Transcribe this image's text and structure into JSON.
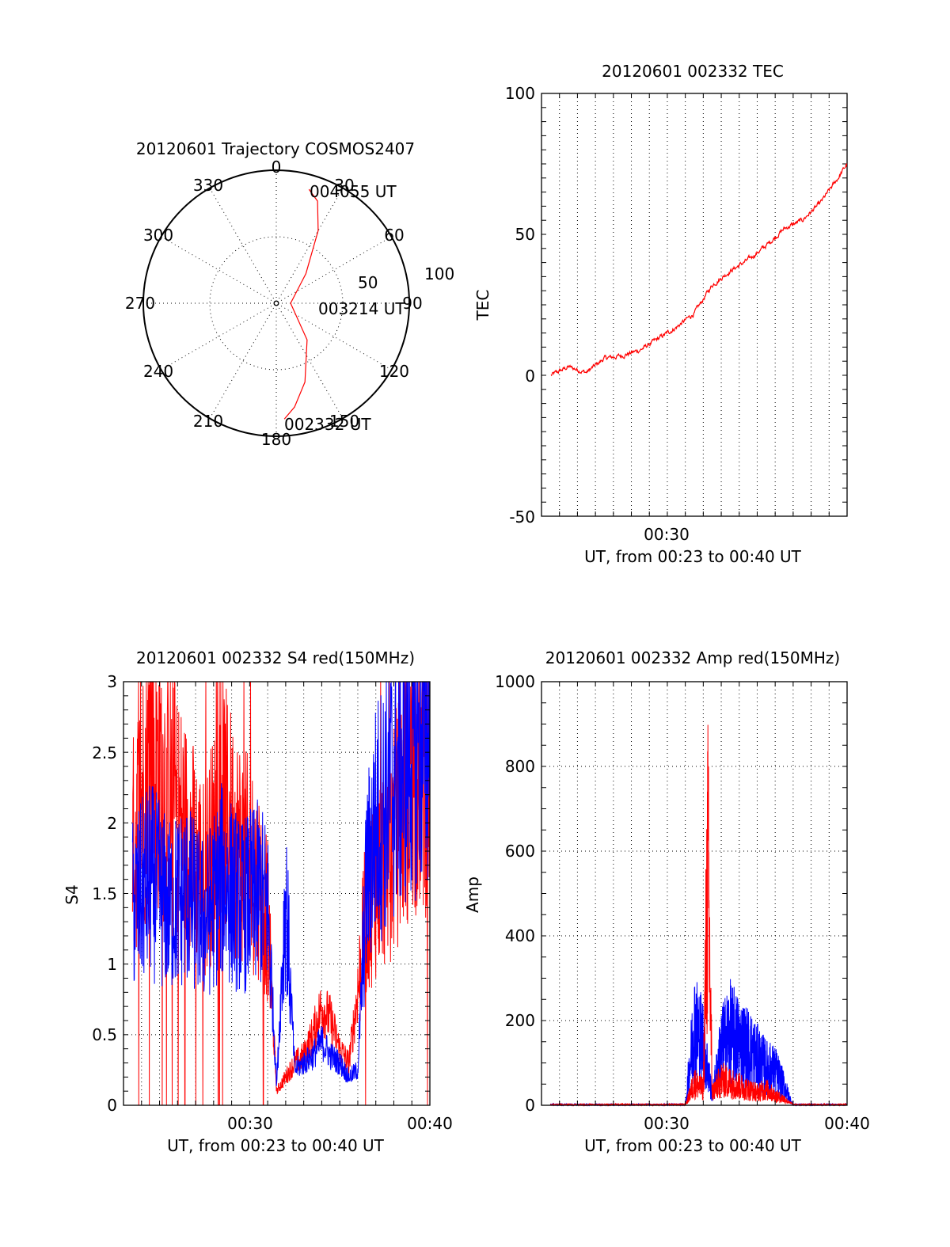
{
  "polar": {
    "title": "20120601 Trajectory COSMOS2407",
    "azimuth_labels": [
      "0",
      "30",
      "60",
      "90",
      "120",
      "150",
      "180",
      "210",
      "240",
      "270",
      "300",
      "330"
    ],
    "radial_labels": [
      "50",
      "100"
    ],
    "annotations": {
      "end": "004055 UT",
      "mid": "003214 UT",
      "start": "002332 UT"
    }
  },
  "tec": {
    "title": "20120601 002332 TEC",
    "ylabel": "TEC",
    "xlabel": "UT, from 00:23 to 00:40 UT",
    "yticks": [
      "100",
      "50",
      "0",
      "-50"
    ],
    "xticks": [
      "00:30"
    ]
  },
  "s4": {
    "title": "20120601 002332 S4 red(150MHz)",
    "ylabel": "S4",
    "xlabel": "UT, from 00:23 to 00:40 UT",
    "yticks": [
      "3",
      "2.5",
      "2",
      "1.5",
      "1",
      "0.5",
      "0"
    ],
    "xticks": [
      "00:30",
      "00:40"
    ]
  },
  "amp": {
    "title": "20120601 002332 Amp red(150MHz)",
    "ylabel": "Amp",
    "xlabel": "UT, from 00:23 to 00:40 UT",
    "yticks": [
      "1000",
      "800",
      "600",
      "400",
      "200",
      "0"
    ],
    "xticks": [
      "00:30",
      "00:40"
    ]
  },
  "colors": {
    "red": "#ff0000",
    "blue": "#0000ff"
  },
  "chart_data": [
    {
      "type": "scatter",
      "title": "20120601 Trajectory COSMOS2407",
      "projection": "polar",
      "series": [
        {
          "azimuth_deg": [
            176,
            170,
            160,
            140,
            90,
            45,
            30,
            22,
            16
          ],
          "radius": [
            97,
            88,
            70,
            40,
            12,
            35,
            70,
            92,
            99
          ]
        }
      ],
      "rlim": [
        0,
        100
      ]
    },
    {
      "type": "line",
      "title": "20120601 002332 TEC",
      "xlabel": "UT, from 00:23 to 00:40 UT",
      "ylabel": "TEC",
      "ylim": [
        -50,
        100
      ],
      "series": [
        {
          "x": [
            "00:23:32",
            "00:24:30",
            "00:25:30",
            "00:26:30",
            "00:27:30",
            "00:28:30",
            "00:29:30",
            "00:30:30",
            "00:31:30",
            "00:32:30",
            "00:33:30",
            "00:34:30",
            "00:35:30",
            "00:36:30",
            "00:37:30",
            "00:38:30",
            "00:39:30",
            "00:40:00"
          ],
          "values": [
            0,
            3,
            1,
            6,
            7,
            9,
            13,
            17,
            22,
            32,
            37,
            41,
            46,
            52,
            55,
            61,
            70,
            75
          ]
        }
      ]
    },
    {
      "type": "line",
      "title": "20120601 002332 S4 red(150MHz)",
      "xlabel": "UT, from 00:23 to 00:40 UT",
      "ylabel": "S4",
      "ylim": [
        0,
        3
      ],
      "series": [
        {
          "color": "red",
          "x": [
            "00:23:30",
            "00:24:30",
            "00:25:30",
            "00:26:30",
            "00:27:30",
            "00:28:30",
            "00:29:30",
            "00:30:30",
            "00:31:00",
            "00:31:30",
            "00:32:00",
            "00:32:30",
            "00:33:00",
            "00:33:30",
            "00:34:00",
            "00:34:30",
            "00:35:00",
            "00:35:30",
            "00:36:00",
            "00:36:30",
            "00:37:00",
            "00:38:00",
            "00:39:00",
            "00:40:00"
          ],
          "values": [
            1.8,
            2.5,
            2.2,
            1.9,
            1.6,
            2.1,
            1.8,
            1.6,
            1.3,
            0.1,
            0.2,
            0.3,
            0.35,
            0.5,
            0.7,
            0.6,
            0.4,
            0.3,
            0.8,
            1.4,
            1.6,
            1.9,
            2.4,
            2.4
          ]
        },
        {
          "color": "blue",
          "x": [
            "00:23:30",
            "00:24:30",
            "00:25:30",
            "00:26:30",
            "00:27:30",
            "00:28:30",
            "00:29:30",
            "00:30:30",
            "00:31:00",
            "00:31:30",
            "00:32:00",
            "00:32:30",
            "00:33:00",
            "00:33:30",
            "00:34:00",
            "00:34:30",
            "00:35:00",
            "00:35:30",
            "00:36:00",
            "00:36:30",
            "00:37:00",
            "00:38:00",
            "00:39:00",
            "00:40:00"
          ],
          "values": [
            1.4,
            1.6,
            1.4,
            1.5,
            1.3,
            1.6,
            1.4,
            1.5,
            1.4,
            0.15,
            1.5,
            0.25,
            0.3,
            0.35,
            0.45,
            0.35,
            0.3,
            0.2,
            0.25,
            1.6,
            2.0,
            2.3,
            2.6,
            2.7
          ]
        }
      ]
    },
    {
      "type": "line",
      "title": "20120601 002332 Amp red(150MHz)",
      "xlabel": "UT, from 00:23 to 00:40 UT",
      "ylabel": "Amp",
      "ylim": [
        0,
        1000
      ],
      "series": [
        {
          "color": "red",
          "x": [
            "00:23:30",
            "00:30:00",
            "00:31:00",
            "00:31:30",
            "00:32:00",
            "00:32:15",
            "00:32:30",
            "00:33:00",
            "00:33:30",
            "00:34:00",
            "00:34:30",
            "00:35:00",
            "00:35:30",
            "00:36:00",
            "00:36:30",
            "00:37:00",
            "00:40:00"
          ],
          "values": [
            0,
            0,
            0,
            70,
            50,
            750,
            40,
            80,
            70,
            60,
            50,
            40,
            50,
            30,
            20,
            0,
            0
          ]
        },
        {
          "color": "blue",
          "x": [
            "00:23:30",
            "00:30:00",
            "00:31:00",
            "00:31:30",
            "00:32:00",
            "00:32:30",
            "00:33:00",
            "00:33:30",
            "00:34:00",
            "00:34:30",
            "00:35:00",
            "00:35:30",
            "00:36:00",
            "00:36:30",
            "00:37:00",
            "00:40:00"
          ],
          "values": [
            0,
            0,
            0,
            250,
            200,
            30,
            180,
            230,
            200,
            180,
            150,
            120,
            110,
            60,
            0,
            0
          ]
        }
      ]
    }
  ]
}
